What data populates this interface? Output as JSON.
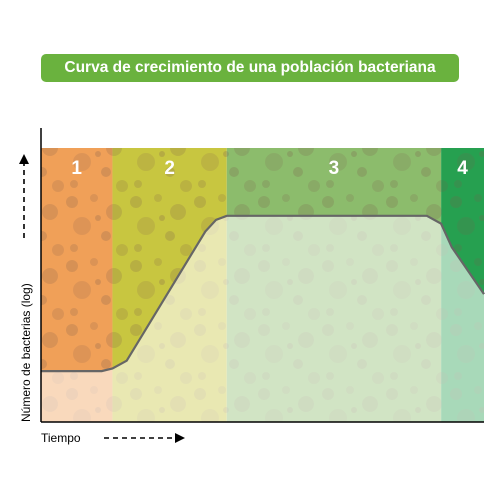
{
  "title": "Curva de crecimiento de una población bacteriana",
  "colors": {
    "banner": "#6ab23e",
    "phase_1": "#f0a058",
    "phase_2": "#c8c640",
    "phase_3": "#8cbc6c",
    "phase_4": "#26a050",
    "curve": "#666666"
  },
  "chart_data": {
    "type": "line",
    "title": "Curva de crecimiento de una población bacteriana",
    "xlabel": "Tiempo",
    "ylabel": "Número de bacterias (log)",
    "y_scale": "log",
    "phases": [
      {
        "label": "1",
        "x_start": 0,
        "x_end": 1
      },
      {
        "label": "2",
        "x_start": 1,
        "x_end": 2.6
      },
      {
        "label": "3",
        "x_start": 2.6,
        "x_end": 5.6
      },
      {
        "label": "4",
        "x_start": 5.6,
        "x_end": 6.2
      }
    ],
    "curve": {
      "x": [
        0,
        0.85,
        1.0,
        1.2,
        2.3,
        2.45,
        2.6,
        5.4,
        5.6,
        5.75,
        6.2
      ],
      "y": [
        1.95,
        1.95,
        2.05,
        2.35,
        7.3,
        7.75,
        7.9,
        7.9,
        7.6,
        6.7,
        4.9
      ]
    },
    "xlim": [
      0,
      6.2
    ],
    "ylim": [
      0,
      10.5
    ],
    "grid": false,
    "legend": "none"
  }
}
